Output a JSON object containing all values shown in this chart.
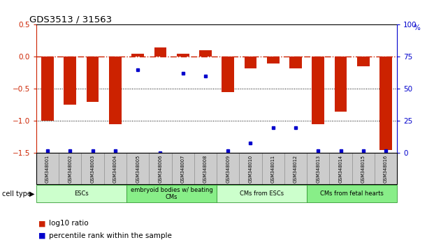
{
  "title": "GDS3513 / 31563",
  "samples": [
    "GSM348001",
    "GSM348002",
    "GSM348003",
    "GSM348004",
    "GSM348005",
    "GSM348006",
    "GSM348007",
    "GSM348008",
    "GSM348009",
    "GSM348010",
    "GSM348011",
    "GSM348012",
    "GSM348013",
    "GSM348014",
    "GSM348015",
    "GSM348016"
  ],
  "log10_ratio": [
    -1.0,
    -0.75,
    -0.7,
    -1.05,
    0.05,
    0.15,
    0.05,
    0.1,
    -0.55,
    -0.18,
    -0.1,
    -0.18,
    -1.05,
    -0.85,
    -0.15,
    -1.45
  ],
  "percentile_rank": [
    2,
    2,
    2,
    2,
    65,
    0,
    62,
    60,
    2,
    8,
    20,
    20,
    2,
    2,
    2,
    2
  ],
  "groups": [
    {
      "label": "ESCs",
      "start": 0,
      "end": 3,
      "color": "#ccffcc"
    },
    {
      "label": "embryoid bodies w/ beating\nCMs",
      "start": 4,
      "end": 7,
      "color": "#88ee88"
    },
    {
      "label": "CMs from ESCs",
      "start": 8,
      "end": 11,
      "color": "#ccffcc"
    },
    {
      "label": "CMs from fetal hearts",
      "start": 12,
      "end": 15,
      "color": "#88ee88"
    }
  ],
  "bar_color": "#cc2200",
  "dot_color": "#0000cc",
  "ylim_left": [
    -1.5,
    0.5
  ],
  "ylim_right": [
    0,
    100
  ],
  "y_ticks_left": [
    -1.5,
    -1.0,
    -0.5,
    0.0,
    0.5
  ],
  "y_ticks_right": [
    0,
    25,
    50,
    75,
    100
  ],
  "hline_color": "#cc2200",
  "dotted_color": "#000000",
  "background_color": "#ffffff"
}
